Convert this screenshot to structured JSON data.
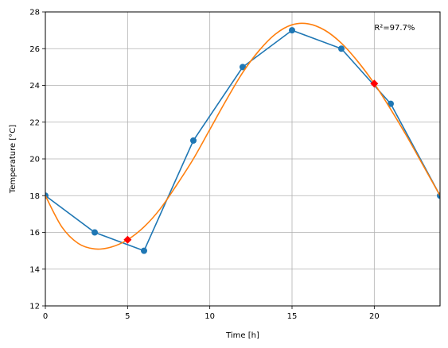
{
  "chart_data": {
    "type": "line",
    "xlabel": "Time [h]",
    "ylabel": "Temperature [°C]",
    "xlim": [
      0,
      24
    ],
    "ylim": [
      12,
      28
    ],
    "xticks": [
      0,
      5,
      10,
      15,
      20
    ],
    "yticks": [
      12,
      14,
      16,
      18,
      20,
      22,
      24,
      26,
      28
    ],
    "grid": true,
    "annotation": "R²=97.7%",
    "series": [
      {
        "kind": "line-markers",
        "color": "#1f77b4",
        "x": [
          0,
          3,
          6,
          9,
          12,
          15,
          18,
          21,
          24
        ],
        "y": [
          18,
          16,
          15,
          21,
          25,
          27,
          26,
          23,
          18
        ]
      },
      {
        "kind": "curve",
        "color": "#ff7f0e",
        "x": [
          0,
          1,
          2,
          3,
          4,
          5,
          6,
          7,
          8,
          9,
          10,
          11,
          12,
          13,
          14,
          15,
          16,
          17,
          18,
          19,
          20,
          21,
          22,
          23,
          24
        ],
        "y": [
          18.0,
          16.3,
          15.4,
          15.1,
          15.2,
          15.6,
          16.3,
          17.3,
          18.6,
          20.0,
          21.6,
          23.2,
          24.7,
          25.9,
          26.8,
          27.3,
          27.35,
          27.0,
          26.3,
          25.3,
          24.1,
          22.7,
          21.2,
          19.6,
          18.0
        ]
      },
      {
        "kind": "markers",
        "color": "#ff0000",
        "marker": "diamond",
        "x": [
          5,
          20
        ],
        "y": [
          15.6,
          24.1
        ]
      }
    ]
  }
}
